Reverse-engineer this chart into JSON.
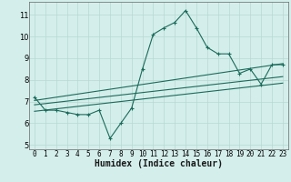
{
  "xlabel": "Humidex (Indice chaleur)",
  "background_color": "#d4eeeb",
  "grid_color": "#b8d8d4",
  "line_color": "#1a6b5a",
  "xlim": [
    -0.5,
    23.5
  ],
  "ylim": [
    4.8,
    11.6
  ],
  "main_series_x": [
    0,
    1,
    2,
    3,
    4,
    5,
    6,
    7,
    8,
    9,
    10,
    11,
    12,
    13,
    14,
    15,
    16,
    17,
    18,
    19,
    20,
    21,
    22,
    23
  ],
  "main_series_y": [
    7.2,
    6.6,
    6.6,
    6.5,
    6.4,
    6.4,
    6.6,
    5.3,
    6.0,
    6.7,
    8.5,
    10.1,
    10.4,
    10.65,
    11.2,
    10.4,
    9.5,
    9.2,
    9.2,
    8.3,
    8.5,
    7.8,
    8.7,
    8.7
  ],
  "reg_line1": {
    "x": [
      0,
      23
    ],
    "y": [
      6.85,
      8.15
    ]
  },
  "reg_line2": {
    "x": [
      0,
      23
    ],
    "y": [
      7.05,
      8.75
    ]
  },
  "reg_line3": {
    "x": [
      0,
      23
    ],
    "y": [
      6.55,
      7.85
    ]
  },
  "yticks": [
    5,
    6,
    7,
    8,
    9,
    10,
    11
  ],
  "xticks": [
    0,
    1,
    2,
    3,
    4,
    5,
    6,
    7,
    8,
    9,
    10,
    11,
    12,
    13,
    14,
    15,
    16,
    17,
    18,
    19,
    20,
    21,
    22,
    23
  ],
  "xlabel_fontsize": 7,
  "tick_fontsize": 5.5,
  "line_width": 0.8,
  "marker_size": 3
}
